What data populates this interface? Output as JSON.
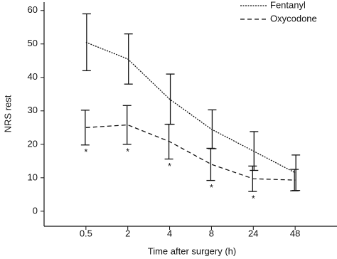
{
  "chart_data": {
    "type": "line",
    "x_label": "Time after surgery (h)",
    "y_label": "NRS rest",
    "categories": [
      "0.5",
      "2",
      "4",
      "8",
      "24",
      "48"
    ],
    "series": [
      {
        "name": "Fentanyl",
        "color": "#111111",
        "style": "dotted",
        "values": [
          50.5,
          45.5,
          33.5,
          24.5,
          18,
          11.5
        ],
        "errors": [
          8.5,
          7.5,
          7.5,
          5.8,
          5.8,
          5.3
        ]
      },
      {
        "name": "Oxycodone",
        "color": "#111111",
        "style": "dashed",
        "values": [
          25,
          25.8,
          20.8,
          14,
          9.7,
          9.3
        ],
        "errors": [
          5.2,
          5.8,
          5.2,
          4.8,
          3.8,
          3.2
        ]
      }
    ],
    "significance": [
      "*",
      "*",
      "*",
      "*",
      "*",
      null
    ],
    "ylim": [
      -4.5,
      62.5
    ],
    "yticks": [
      0,
      10,
      20,
      30,
      40,
      50,
      60
    ],
    "legend": "top-right"
  }
}
